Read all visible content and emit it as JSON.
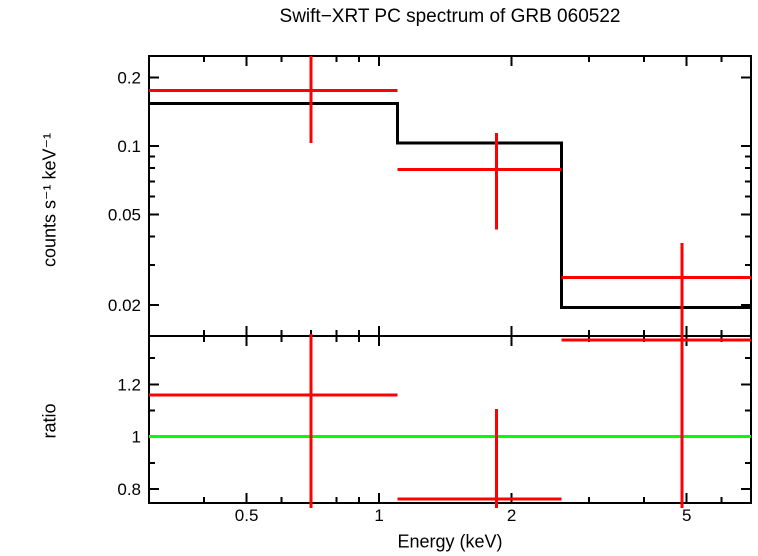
{
  "chart_data": {
    "type": "line",
    "title": "Swift−XRT PC spectrum of GRB 060522",
    "xlabel": "Energy (keV)",
    "x_scale": "log",
    "xlim": [
      0.3,
      7.0
    ],
    "x_ticks": {
      "labeled_values": [
        0.5,
        1,
        2,
        5
      ],
      "labeled_text": [
        "0.5",
        "1",
        "2",
        "5"
      ],
      "minor_values": [
        0.4,
        0.6,
        0.7,
        0.8,
        0.9,
        3,
        4,
        6
      ]
    },
    "panels": [
      {
        "name": "spectrum",
        "ylabel": "counts s⁻¹ keV⁻¹",
        "y_scale": "log",
        "ylim": [
          0.0146,
          0.249
        ],
        "y_ticks": {
          "labeled_values": [
            0.2,
            0.1,
            0.05,
            0.02
          ],
          "labeled_text": [
            "0.2",
            "0.1",
            "0.05",
            "0.02"
          ],
          "minor_values": [
            0.09,
            0.08,
            0.07,
            0.06,
            0.04,
            0.03
          ]
        },
        "colors": {
          "data": "#ff0000",
          "model": "#000000"
        },
        "model_steps": [
          {
            "e_lo": 0.3,
            "e_hi": 1.1,
            "value": 0.154
          },
          {
            "e_lo": 1.1,
            "e_hi": 2.6,
            "value": 0.103
          },
          {
            "e_lo": 2.6,
            "e_hi": 7.0,
            "value": 0.0195
          }
        ],
        "data_points": [
          {
            "e": 0.7,
            "e_lo": 0.3,
            "e_hi": 1.1,
            "rate": 0.176,
            "err_lo": 0.103,
            "err_hi": null,
            "err_hi_clipped": true
          },
          {
            "e": 1.85,
            "e_lo": 1.1,
            "e_hi": 2.6,
            "rate": 0.079,
            "err_lo": 0.043,
            "err_hi": 0.114
          },
          {
            "e": 4.88,
            "e_lo": 2.6,
            "e_hi": 7.0,
            "rate": 0.0264,
            "err_lo": null,
            "err_lo_clipped": true,
            "err_hi": 0.0375
          }
        ]
      },
      {
        "name": "ratio",
        "ylabel": "ratio",
        "y_scale": "linear",
        "ylim": [
          0.746,
          1.385
        ],
        "y_ticks": {
          "labeled_values": [
            1.2,
            1,
            0.8
          ],
          "labeled_text": [
            "1.2",
            "1",
            "0.8"
          ],
          "minor_values": [
            1.3,
            1.1,
            0.9
          ]
        },
        "colors": {
          "data": "#ff0000"
        },
        "reference_line": {
          "value": 1,
          "color": "#00ff00"
        },
        "data_points": [
          {
            "e": 0.7,
            "e_lo": 0.3,
            "e_hi": 1.1,
            "ratio": 1.16,
            "err_lo": null,
            "err_lo_clipped": true,
            "err_hi": null,
            "err_hi_clipped": true
          },
          {
            "e": 1.85,
            "e_lo": 1.1,
            "e_hi": 2.6,
            "ratio": 0.761,
            "err_lo": null,
            "err_lo_clipped": true,
            "err_hi": 1.106
          },
          {
            "e": 4.88,
            "e_lo": 2.6,
            "e_hi": 7.0,
            "ratio": 1.37,
            "err_lo": null,
            "err_lo_clipped": true,
            "err_hi": null,
            "err_hi_clipped": true
          }
        ]
      }
    ],
    "legend": "none",
    "grid": false
  }
}
